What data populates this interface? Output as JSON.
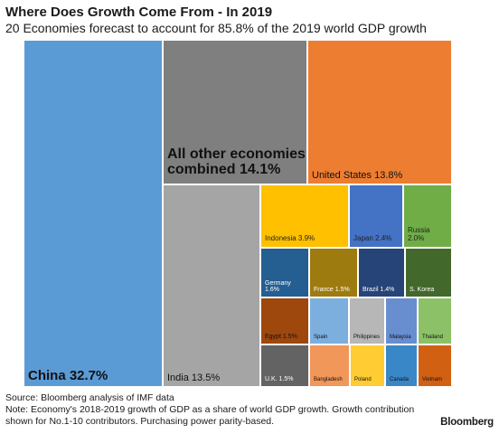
{
  "chart_data": {
    "type": "treemap",
    "title": "Where Does Growth Come From - In 2019",
    "subtitle": "20 Economies forecast to account for 85.8% of the 2019 world GDP growth",
    "unit": "% of world GDP growth",
    "items": [
      {
        "label": "China",
        "value": 32.7,
        "display": "China 32.7%",
        "color": "#5b9bd5"
      },
      {
        "label": "All other economies combined",
        "value": 14.1,
        "display": "All other economies\ncombined 14.1%",
        "color": "#7f7f7f"
      },
      {
        "label": "United States",
        "value": 13.8,
        "display": "United States 13.8%",
        "color": "#ed7d31"
      },
      {
        "label": "India",
        "value": 13.5,
        "display": "India 13.5%",
        "color": "#a5a5a5"
      },
      {
        "label": "Indonesia",
        "value": 3.9,
        "display": "Indonesia 3.9%",
        "color": "#ffc000"
      },
      {
        "label": "Japan",
        "value": 2.4,
        "display": "Japan 2.4%",
        "color": "#4472c4"
      },
      {
        "label": "Russia",
        "value": 2.0,
        "display": "Russia\n2.0%",
        "color": "#70ad47"
      },
      {
        "label": "Germany",
        "value": 1.6,
        "display": "Germany\n1.6%",
        "color": "#255e91"
      },
      {
        "label": "France",
        "value": 1.5,
        "display": "France 1.5%",
        "color": "#9e7b0f"
      },
      {
        "label": "Brazil",
        "value": 1.4,
        "display": "Brazil 1.4%",
        "color": "#264478"
      },
      {
        "label": "S. Korea",
        "value": null,
        "display": "S. Korea",
        "color": "#43682b"
      },
      {
        "label": "Egypt",
        "value": 1.5,
        "display": "Egypt 1.5%",
        "color": "#9e480e"
      },
      {
        "label": "Spain",
        "value": null,
        "display": "Spain",
        "color": "#7cafdd"
      },
      {
        "label": "Philippines",
        "value": null,
        "display": "Philippines",
        "color": "#b7b7b7"
      },
      {
        "label": "Malaysia",
        "value": null,
        "display": "Malaysia",
        "color": "#698ed0"
      },
      {
        "label": "Thailand",
        "value": null,
        "display": "Thailand",
        "color": "#8cc168"
      },
      {
        "label": "U.K.",
        "value": 1.5,
        "display": "U.K. 1.5%",
        "color": "#636363"
      },
      {
        "label": "Bangladesh",
        "value": null,
        "display": "Bangladesh",
        "color": "#f1975a"
      },
      {
        "label": "Poland",
        "value": null,
        "display": "Poland",
        "color": "#ffcd33"
      },
      {
        "label": "Canada",
        "value": null,
        "display": "Canada",
        "color": "#3a87c8"
      },
      {
        "label": "Vietnam",
        "value": null,
        "display": "Vietnam",
        "color": "#d26012"
      }
    ]
  },
  "footer": {
    "source": "Source: Bloomberg analysis of IMF data",
    "note": "Note: Economy's 2018-2019 growth of GDP as a share of world GDP growth. Growth contribution shown for No.1-10 contributors. Purchasing power parity-based.",
    "brand": "Bloomberg"
  }
}
